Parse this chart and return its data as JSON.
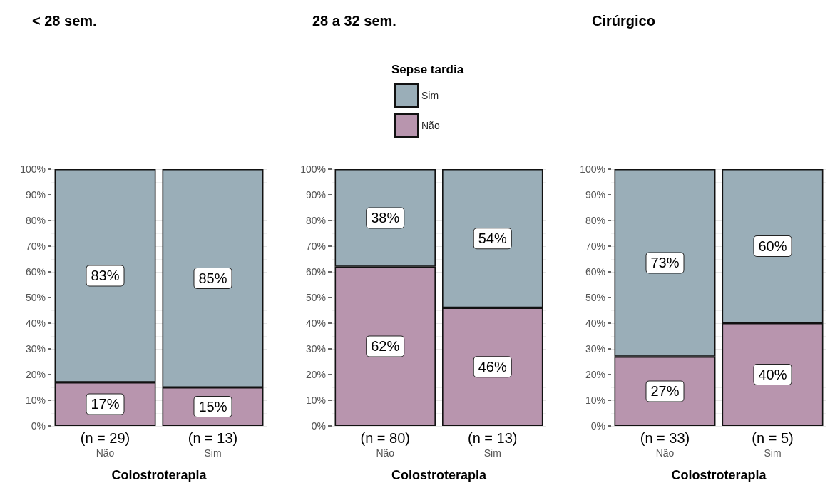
{
  "chart_data": [
    {
      "type": "bar",
      "title": "< 28 sem.",
      "xlabel": "Colostroterapia",
      "categories": [
        "Não",
        "Sim"
      ],
      "stacked": true,
      "legend": false,
      "grid": "y",
      "series": [
        {
          "color": "#b895ae",
          "values": [
            17,
            15
          ],
          "value_labels": [
            "17%",
            "15%"
          ]
        },
        {
          "color": "#9aaeb8",
          "values": [
            83,
            85
          ],
          "value_labels": [
            "83%",
            "85%"
          ]
        }
      ],
      "ylim": [
        0,
        100
      ],
      "yticks": [
        {
          "value": 0,
          "label": "0%"
        },
        {
          "value": 10,
          "label": "10%"
        },
        {
          "value": 20,
          "label": "20%"
        },
        {
          "value": 30,
          "label": "30%"
        },
        {
          "value": 40,
          "label": "40%"
        },
        {
          "value": 50,
          "label": "50%"
        },
        {
          "value": 60,
          "label": "60%"
        },
        {
          "value": 70,
          "label": "70%"
        },
        {
          "value": 80,
          "label": "80%"
        },
        {
          "value": 90,
          "label": "90%"
        },
        {
          "value": 100,
          "label": "100%"
        }
      ],
      "annotations": [
        "(n = 29)",
        "(n = 13)"
      ]
    },
    {
      "type": "bar",
      "title": "28 a 32 sem.",
      "xlabel": "Colostroterapia",
      "legend_title": "Sepse tardia",
      "categories": [
        "Não",
        "Sim"
      ],
      "stacked": true,
      "legend": "top",
      "grid": "y",
      "series": [
        {
          "name": "Não",
          "color": "#b895ae",
          "values": [
            62,
            46
          ],
          "value_labels": [
            "62%",
            "46%"
          ]
        },
        {
          "name": "Sim",
          "color": "#9aaeb8",
          "values": [
            38,
            54
          ],
          "value_labels": [
            "38%",
            "54%"
          ]
        }
      ],
      "ylim": [
        0,
        100
      ],
      "yticks": [
        {
          "value": 0,
          "label": "0%"
        },
        {
          "value": 10,
          "label": "10%"
        },
        {
          "value": 20,
          "label": "20%"
        },
        {
          "value": 30,
          "label": "30%"
        },
        {
          "value": 40,
          "label": "40%"
        },
        {
          "value": 50,
          "label": "50%"
        },
        {
          "value": 60,
          "label": "60%"
        },
        {
          "value": 70,
          "label": "70%"
        },
        {
          "value": 80,
          "label": "80%"
        },
        {
          "value": 90,
          "label": "90%"
        },
        {
          "value": 100,
          "label": "100%"
        }
      ],
      "annotations": [
        "(n = 80)",
        "(n = 13)"
      ]
    },
    {
      "type": "bar",
      "title": "Cirúrgico",
      "xlabel": "Colostroterapia",
      "categories": [
        "Não",
        "Sim"
      ],
      "stacked": true,
      "legend": false,
      "grid": "y",
      "series": [
        {
          "color": "#b895ae",
          "values": [
            27,
            40
          ],
          "value_labels": [
            "27%",
            "40%"
          ]
        },
        {
          "color": "#9aaeb8",
          "values": [
            73,
            60
          ],
          "value_labels": [
            "73%",
            "60%"
          ]
        }
      ],
      "ylim": [
        0,
        100
      ],
      "yticks": [
        {
          "value": 0,
          "label": "0%"
        },
        {
          "value": 10,
          "label": "10%"
        },
        {
          "value": 20,
          "label": "20%"
        },
        {
          "value": 30,
          "label": "30%"
        },
        {
          "value": 40,
          "label": "40%"
        },
        {
          "value": 50,
          "label": "50%"
        },
        {
          "value": 60,
          "label": "60%"
        },
        {
          "value": 70,
          "label": "70%"
        },
        {
          "value": 80,
          "label": "80%"
        },
        {
          "value": 90,
          "label": "90%"
        },
        {
          "value": 100,
          "label": "100%"
        }
      ],
      "annotations": [
        "(n = 33)",
        "(n = 5)"
      ]
    }
  ]
}
